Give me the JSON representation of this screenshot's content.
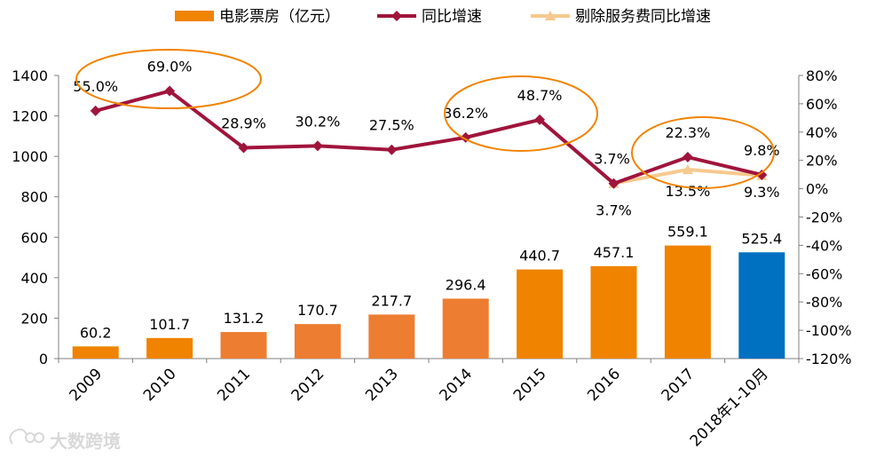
{
  "chart_data": {
    "type": "bar+line",
    "legend": {
      "placement": "top-center",
      "entries": [
        {
          "label": "电影票房（亿元）",
          "kind": "bar",
          "color": "#f08300"
        },
        {
          "label": "同比增速",
          "kind": "line",
          "color": "#a0143c"
        },
        {
          "label": "剔除服务费同比增速",
          "kind": "line",
          "color": "#f6c98e"
        }
      ]
    },
    "categories": [
      "2009",
      "2010",
      "2011",
      "2012",
      "2013",
      "2014",
      "2015",
      "2016",
      "2017",
      "2018年1-10月"
    ],
    "bars": {
      "name": "电影票房（亿元）",
      "values": [
        60.2,
        101.7,
        131.2,
        170.7,
        217.7,
        296.4,
        440.7,
        457.1,
        559.1,
        525.4
      ],
      "labels": [
        "60.2",
        "101.7",
        "131.2",
        "170.7",
        "217.7",
        "296.4",
        "440.7",
        "457.1",
        "559.1",
        "525.4"
      ],
      "colors": [
        "#f08300",
        "#f08300",
        "#ed7d31",
        "#ed7d31",
        "#ed7d31",
        "#ed7d31",
        "#f08300",
        "#f08300",
        "#f08300",
        "#0070c0"
      ]
    },
    "growth": {
      "name": "同比增速",
      "values": [
        55.0,
        69.0,
        28.9,
        30.2,
        27.5,
        36.2,
        48.7,
        3.7,
        22.3,
        9.8
      ],
      "labels": [
        "55.0%",
        "69.0%",
        "28.9%",
        "30.2%",
        "27.5%",
        "36.2%",
        "48.7%",
        "3.7%",
        "22.3%",
        "9.8%"
      ],
      "color": "#a0143c"
    },
    "growth_ex_fee": {
      "name": "剔除服务费同比增速",
      "start_index": 7,
      "values": [
        3.7,
        13.5,
        9.3
      ],
      "labels": [
        "3.7%",
        "13.5%",
        "9.3%"
      ],
      "color": "#f6c98e"
    },
    "y_left": {
      "min": 0,
      "max": 1400,
      "step": 200,
      "tick_labels": [
        "0",
        "200",
        "400",
        "600",
        "800",
        "1000",
        "1200",
        "1400"
      ]
    },
    "y_right": {
      "min": -120,
      "max": 80,
      "step": 20,
      "tick_labels": [
        "-120%",
        "-100%",
        "-80%",
        "-60%",
        "-40%",
        "-20%",
        "0%",
        "20%",
        "40%",
        "60%",
        "80%"
      ]
    },
    "highlights": [
      {
        "around": [
          "2009",
          "2010"
        ],
        "color": "#f08300"
      },
      {
        "around": [
          "2014",
          "2015"
        ],
        "color": "#f08300"
      },
      {
        "around": [
          "2017",
          "2018年1-10月"
        ],
        "color": "#f08300"
      }
    ],
    "grid": false
  },
  "watermark": {
    "text": "大数跨境"
  }
}
